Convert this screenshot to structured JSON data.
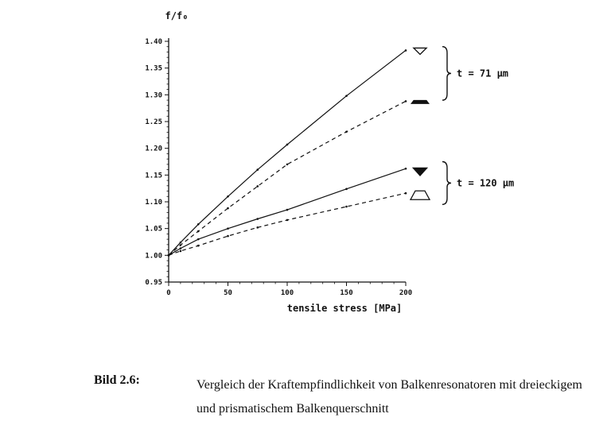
{
  "chart_data": {
    "type": "line",
    "ylabel": "f/f₀",
    "xlabel": "tensile stress [MPa]",
    "xlim": [
      0,
      200
    ],
    "ylim": [
      0.95,
      1.4
    ],
    "xticks": [
      "0",
      "50",
      "100",
      "150",
      "200"
    ],
    "yticks": [
      "0.95",
      "1.00",
      "1.05",
      "1.10",
      "1.15",
      "1.20",
      "1.25",
      "1.30",
      "1.35",
      "1.40"
    ],
    "series": [
      {
        "group": "t71",
        "style": "solid",
        "marker": "triangle-down-open",
        "x": [
          0,
          10,
          25,
          50,
          75,
          100,
          150,
          200
        ],
        "y": [
          1.0,
          1.024,
          1.058,
          1.11,
          1.16,
          1.207,
          1.298,
          1.383
        ]
      },
      {
        "group": "t71",
        "style": "dashed",
        "marker": "trapezoid-filled",
        "x": [
          0,
          10,
          25,
          50,
          75,
          100,
          150,
          200
        ],
        "y": [
          1.0,
          1.019,
          1.045,
          1.088,
          1.129,
          1.17,
          1.231,
          1.288
        ]
      },
      {
        "group": "t120",
        "style": "solid",
        "marker": "triangle-down-filled",
        "x": [
          0,
          10,
          25,
          50,
          75,
          100,
          150,
          200
        ],
        "y": [
          1.0,
          1.013,
          1.03,
          1.05,
          1.068,
          1.085,
          1.124,
          1.162
        ]
      },
      {
        "group": "t120",
        "style": "dashed",
        "marker": "trapezoid-open",
        "x": [
          0,
          10,
          25,
          50,
          75,
          100,
          150,
          200
        ],
        "y": [
          1.0,
          1.008,
          1.018,
          1.036,
          1.052,
          1.066,
          1.091,
          1.116
        ]
      }
    ],
    "annotations": [
      {
        "group": "t71",
        "text": "t = 71 µm",
        "brace_y": [
          1.39,
          1.29
        ]
      },
      {
        "group": "t120",
        "text": "t = 120 µm",
        "brace_y": [
          1.175,
          1.095
        ]
      }
    ]
  },
  "caption": {
    "label": "Bild 2.6:",
    "text": "Vergleich der Kraftempfindlichkeit von Balkenresonatoren mit dreieckigem und prismatischem Balkenquerschnitt"
  }
}
